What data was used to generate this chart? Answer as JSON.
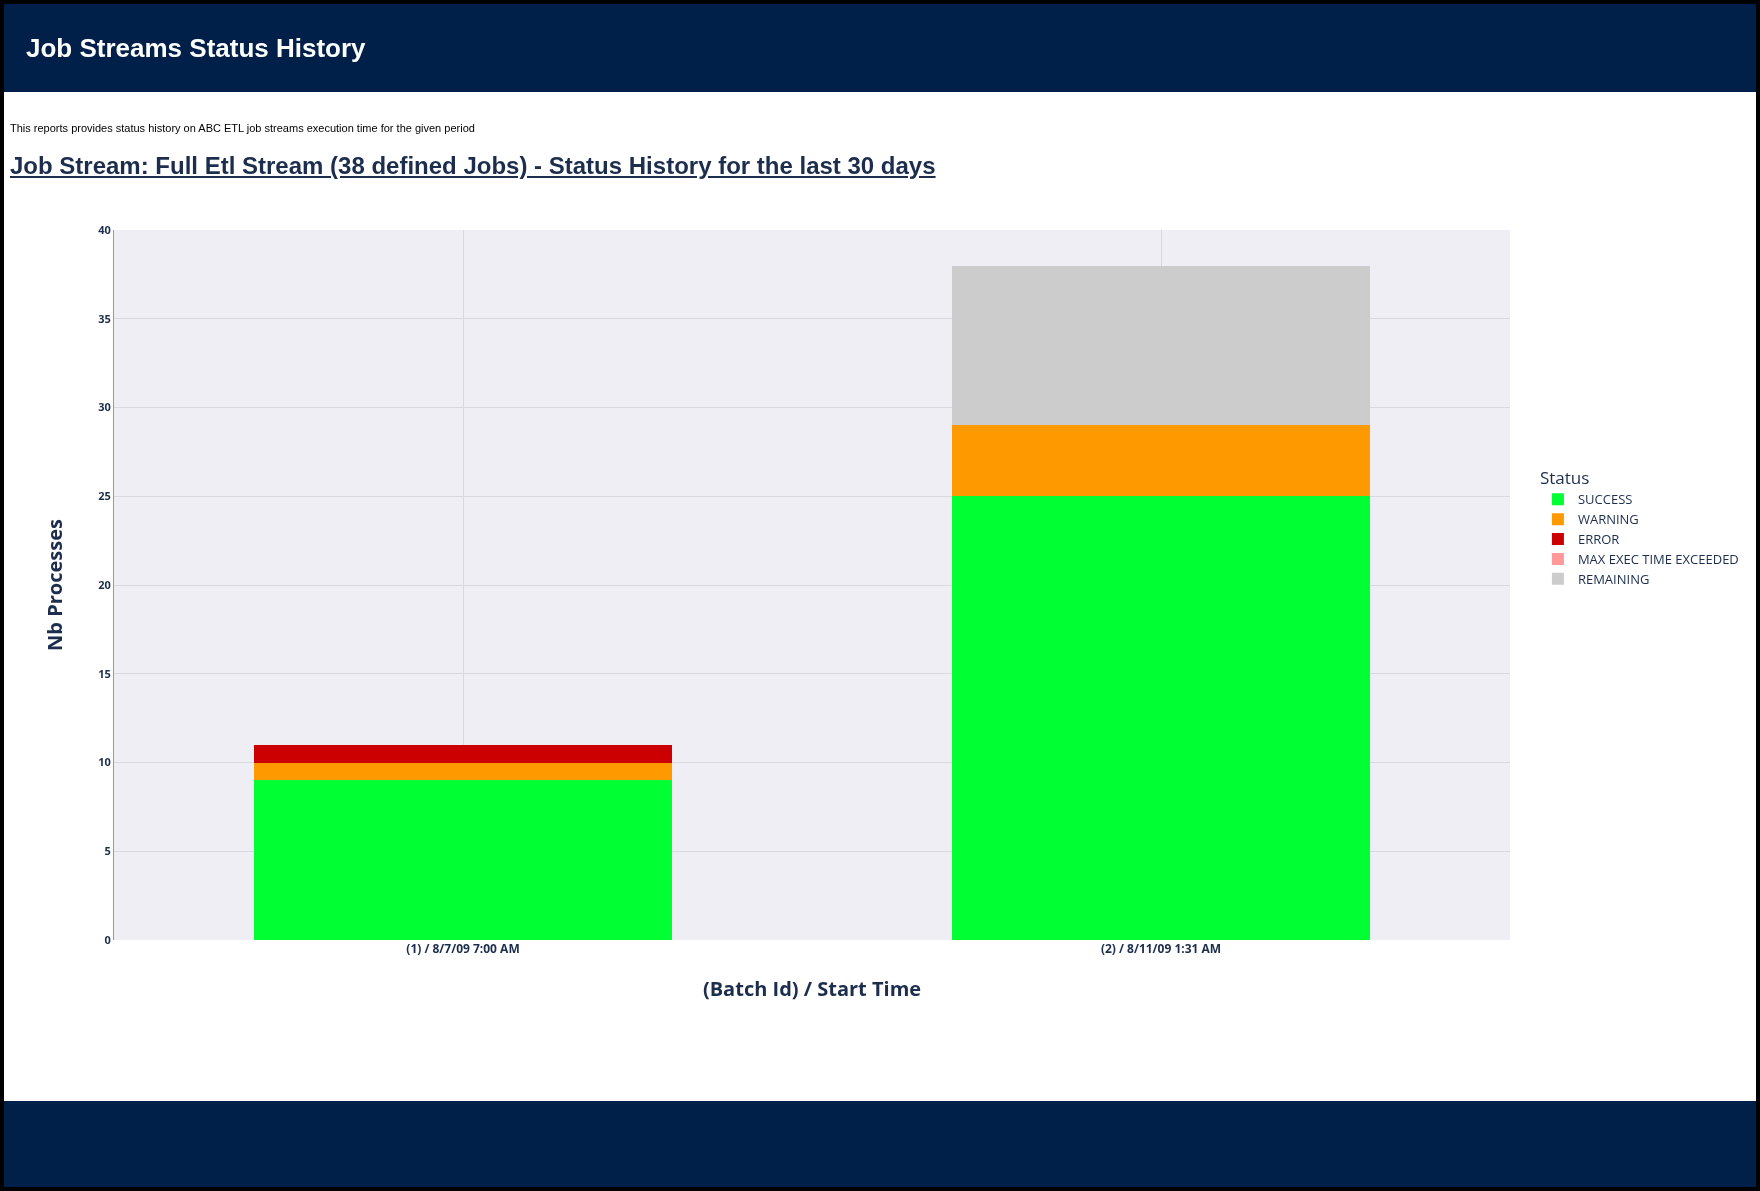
{
  "chart_data": {
    "type": "bar",
    "title": "Job Streams Status History",
    "subtitle": "This reports provides status history on ABC ETL job streams execution time for the given period",
    "annotations": [
      "Job Stream: Full Etl Stream (38 defined Jobs) -  Status History for the last 30 days"
    ],
    "xlabel": "(Batch Id) / Start Time",
    "ylabel": "Nb Processes",
    "legend_title": "Status",
    "categories": [
      "(1) / 8/7/09 7:00 AM",
      "(2) / 8/11/09 1:31 AM"
    ],
    "stacked": true,
    "series": [
      {
        "name": "SUCCESS",
        "color": "#00ff33",
        "values": [
          9,
          25
        ]
      },
      {
        "name": "WARNING",
        "color": "#ff9900",
        "values": [
          1,
          4
        ]
      },
      {
        "name": "ERROR",
        "color": "#cc0000",
        "values": [
          1,
          0
        ]
      },
      {
        "name": "MAX EXEC TIME EXCEEDED",
        "color": "#ff9999",
        "values": [
          0,
          0
        ]
      },
      {
        "name": "REMAINING",
        "color": "#cccccc",
        "values": [
          0,
          9
        ]
      }
    ],
    "ylim": [
      0,
      40
    ],
    "yticks": [
      0,
      5,
      10,
      15,
      20,
      25,
      30,
      35,
      40
    ],
    "grid": true,
    "legend": "right"
  }
}
